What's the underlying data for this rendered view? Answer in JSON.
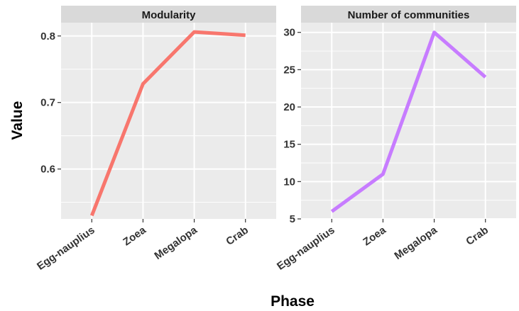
{
  "chart_data": {
    "type": "line",
    "xlabel": "Phase",
    "ylabel": "Value",
    "categories": [
      "Egg-nauplius",
      "Zoea",
      "Megalopa",
      "Crab"
    ],
    "panels": [
      {
        "title": "Modularity",
        "color": "#F8766D",
        "values": [
          0.53,
          0.728,
          0.806,
          0.801
        ],
        "ylim": [
          0.525,
          0.82
        ],
        "yticks": [
          0.6,
          0.7,
          0.8
        ],
        "ytick_labels": [
          "0.6",
          "0.7",
          "0.8"
        ]
      },
      {
        "title": "Number of communities",
        "color": "#C77CFF",
        "values": [
          6,
          11,
          30,
          24
        ],
        "ylim": [
          5,
          31.3
        ],
        "yticks": [
          5,
          10,
          15,
          20,
          25,
          30
        ],
        "ytick_labels": [
          "5",
          "10",
          "15",
          "20",
          "25",
          "30"
        ]
      }
    ],
    "grid": true,
    "background": "#EBEBEB",
    "strip_background": "#D9D9D9"
  }
}
